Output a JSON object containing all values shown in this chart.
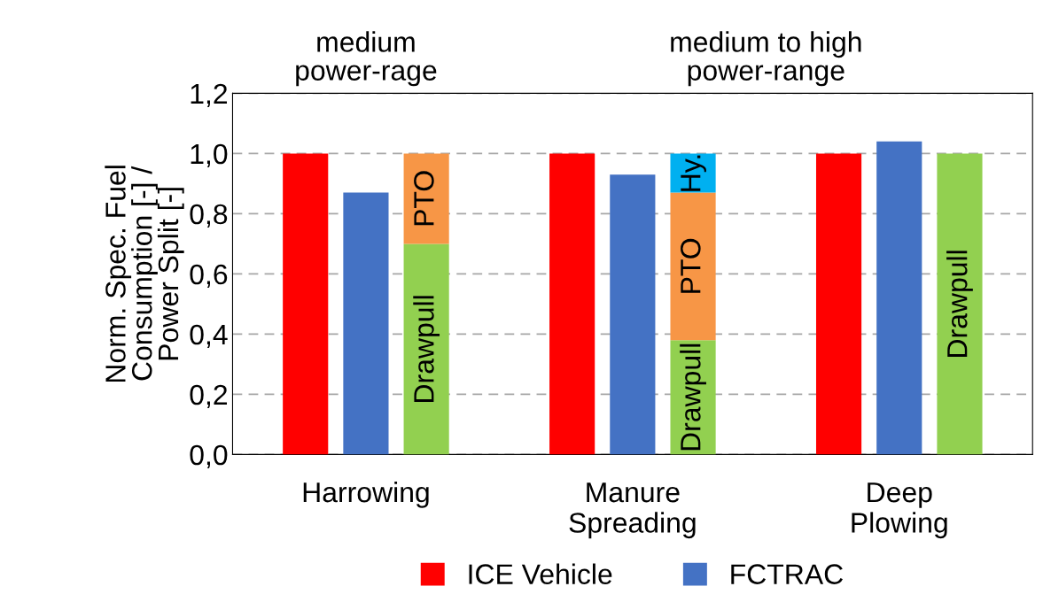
{
  "chart_data": {
    "type": "bar",
    "ylabel": "Norm. Spec. Fuel\nConsumption [-] /\nPower Split [-]",
    "categories": [
      "Harrowing",
      "Manure\nSpreading",
      "Deep\nPlowing"
    ],
    "series": [
      {
        "name": "ICE Vehicle",
        "color": "#ff0000",
        "values": [
          1.0,
          1.0,
          1.0
        ]
      },
      {
        "name": "FCTRAC",
        "color": "#4472c4",
        "values": [
          0.87,
          0.93,
          1.04
        ]
      },
      {
        "name": "Drawpull",
        "color": "#92d050",
        "values": [
          0.7,
          0.38,
          1.0
        ],
        "base": [
          0,
          0,
          0
        ]
      },
      {
        "name": "PTO",
        "color": "#f79646",
        "values": [
          0.3,
          0.49,
          null
        ],
        "base": [
          0.7,
          0.38,
          null
        ]
      },
      {
        "name": "Hy.",
        "color": "#00b0f0",
        "values": [
          null,
          0.13,
          null
        ],
        "base": [
          null,
          0.87,
          null
        ]
      }
    ],
    "ylim": [
      0,
      1.2
    ],
    "yticks": [
      {
        "value": 0,
        "label": "0,0"
      },
      {
        "value": 0.2,
        "label": "0,2"
      },
      {
        "value": 0.4,
        "label": "0,4"
      },
      {
        "value": 0.6,
        "label": "0,6"
      },
      {
        "value": 0.8,
        "label": "0,8"
      },
      {
        "value": 1.0,
        "label": "1,0"
      },
      {
        "value": 1.2,
        "label": "1,2"
      }
    ],
    "grid": "y",
    "legend": "bottom",
    "annotations": [
      "medium\npower-rage",
      "medium to high\npower-range"
    ]
  }
}
